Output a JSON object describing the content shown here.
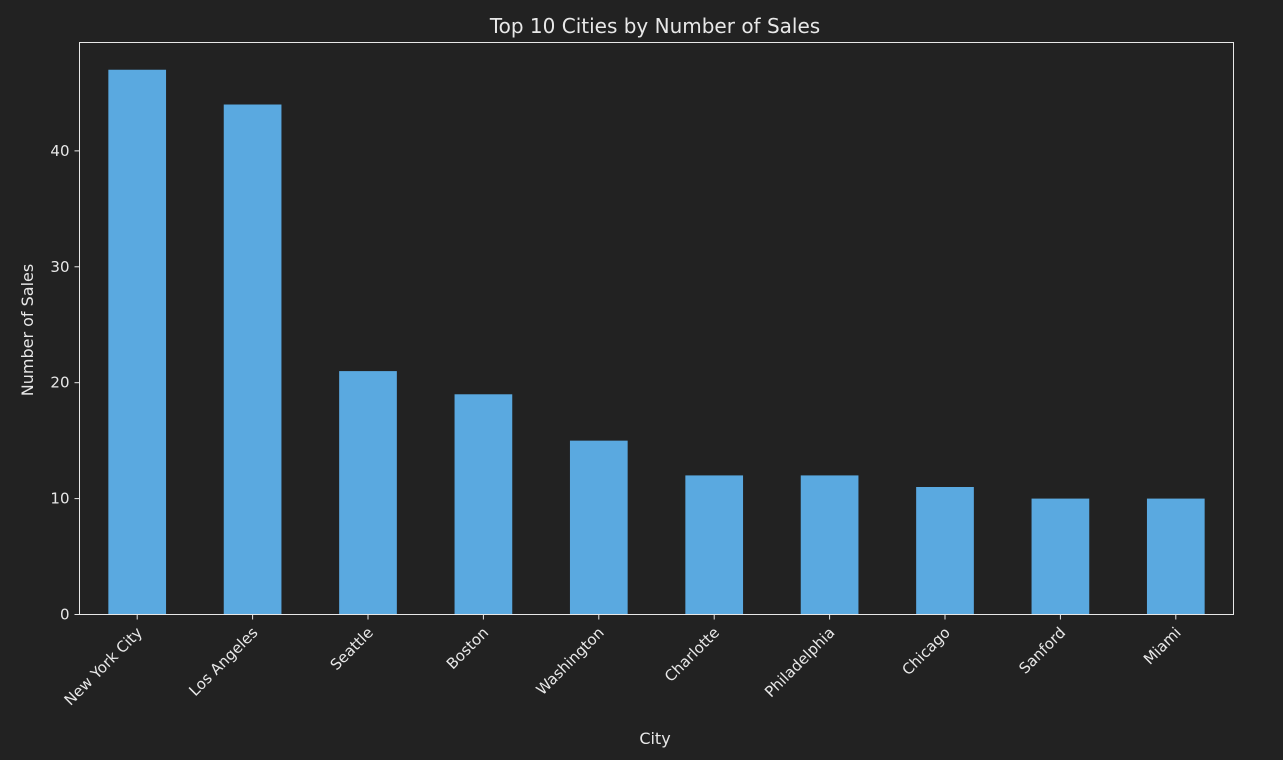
{
  "chart_data": {
    "type": "bar",
    "title": "Top 10 Cities by Number of Sales",
    "xlabel": "City",
    "ylabel": "Number of Sales",
    "categories": [
      "New York City",
      "Los Angeles",
      "Seattle",
      "Boston",
      "Washington",
      "Charlotte",
      "Philadelphia",
      "Chicago",
      "Sanford",
      "Miami"
    ],
    "values": [
      47,
      44,
      21,
      19,
      15,
      12,
      12,
      11,
      10,
      10
    ],
    "ylim": [
      0,
      49.35
    ],
    "yticks": [
      0,
      10,
      20,
      30,
      40
    ],
    "grid": false,
    "legend": false,
    "bar_color": "#5aa9e0",
    "background_color": "#222222",
    "text_color": "#e8e8e8"
  }
}
